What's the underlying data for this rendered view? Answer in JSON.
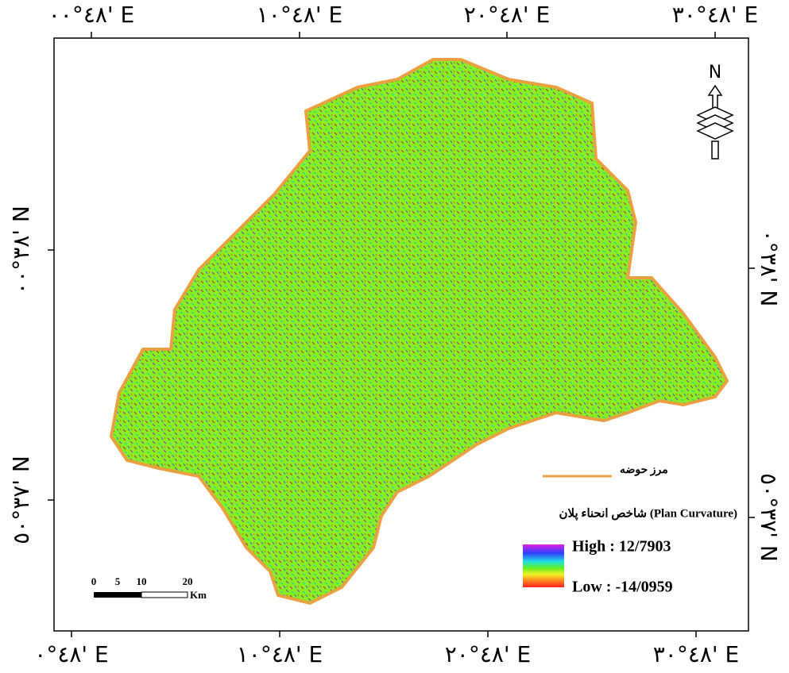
{
  "labels": {
    "top": [
      "٤٨°٠٠' E",
      "٤٨°١٠' E",
      "٤٨°٢٠' E",
      "٤٨°٣٠' E"
    ],
    "bottom": [
      "٤٨°٠' E",
      "٤٨°١٠' E",
      "٤٨°٢٠' E",
      "٤٨°٣٠' E"
    ],
    "left": [
      "٣٨°٠٠' N",
      "٣٧°٥٠' N"
    ],
    "right": [
      "٣٨°٠' N",
      "٣٧°٥٠' N"
    ]
  },
  "north": "N",
  "scale": {
    "ticks": [
      "0",
      "5",
      "10",
      "20"
    ],
    "unit": "Km"
  },
  "legend": {
    "boundary": "مرز حوضه",
    "index_title": "شاخص انحناء پلان (Plan Curvature)",
    "high": "High : 12/7903",
    "low": "Low : -14/0959"
  }
}
